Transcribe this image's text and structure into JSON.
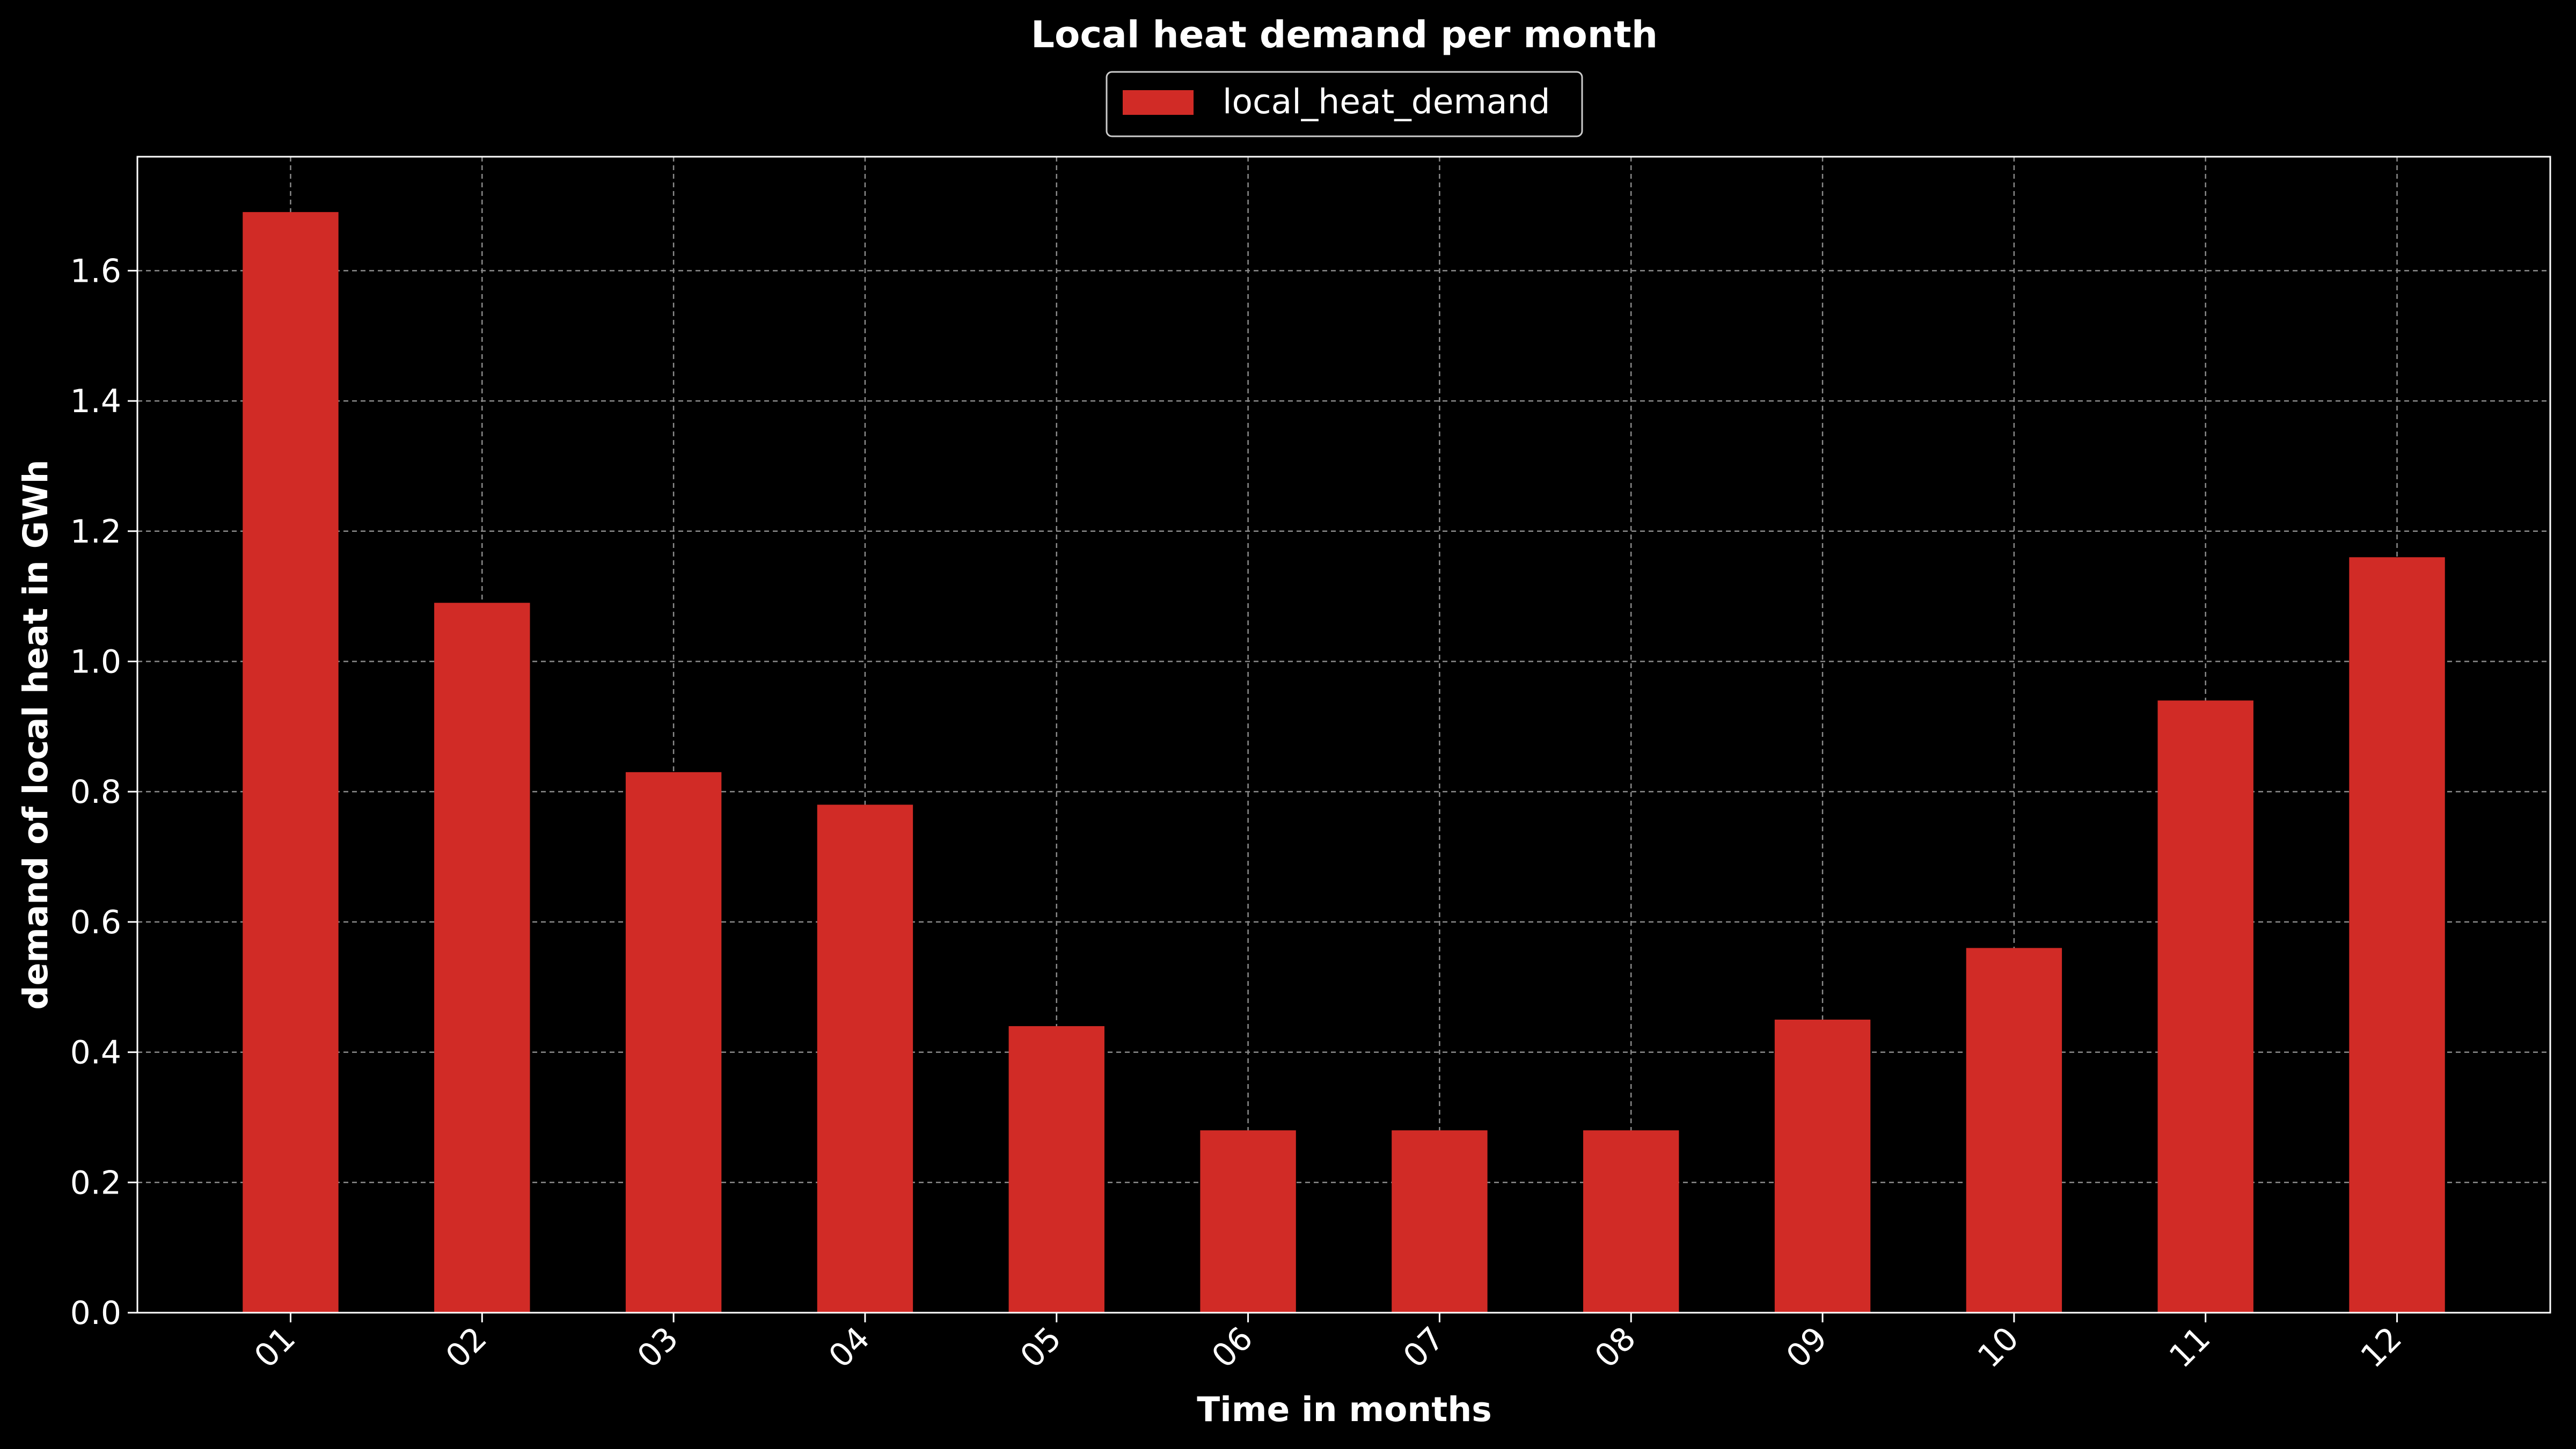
{
  "chart_data": {
    "type": "bar",
    "title": "Local heat demand per month",
    "xlabel": "Time in months",
    "ylabel": "demand of local heat in GWh",
    "categories": [
      "01",
      "02",
      "03",
      "04",
      "05",
      "06",
      "07",
      "08",
      "09",
      "10",
      "11",
      "12"
    ],
    "series": [
      {
        "name": "local_heat_demand",
        "color": "#d12b26",
        "values": [
          1.69,
          1.09,
          0.83,
          0.78,
          0.44,
          0.28,
          0.28,
          0.28,
          0.45,
          0.56,
          0.94,
          1.16
        ]
      }
    ],
    "ylim": [
      0,
      1.775
    ],
    "yticks": [
      "0.0",
      "0.2",
      "0.4",
      "0.6",
      "0.8",
      "1.0",
      "1.2",
      "1.4",
      "1.6"
    ],
    "grid": true,
    "legend": "top-center",
    "background": "#000000",
    "foreground": "#ffffff"
  }
}
